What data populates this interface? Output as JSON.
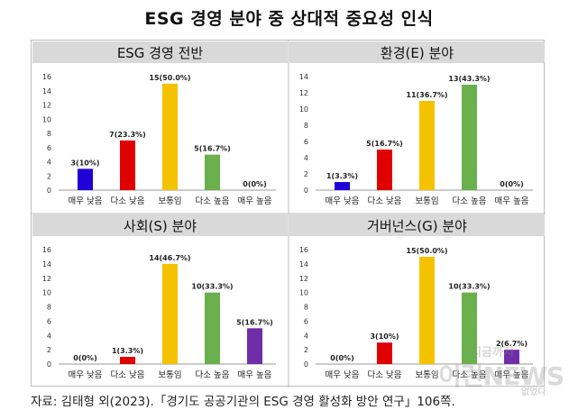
{
  "title": "ESG 경영 분야 중 상대적 중요성 인식",
  "source": "자료: 김태형 외(2023).「경기도 공공기관의 ESG 경영 활성화 방안 연구」106쪽.",
  "watermark": {
    "line1": "지금까지",
    "line2": "이런NEWS",
    "line3": "없었다"
  },
  "colors": [
    "#1f00d6",
    "#e00000",
    "#f5c200",
    "#6ab04c",
    "#6f2da8"
  ],
  "chart_data": [
    {
      "type": "bar",
      "title": "ESG 경영 전반",
      "categories": [
        "매우 낮음",
        "다소 낮음",
        "보통임",
        "다소 높음",
        "매우 높음"
      ],
      "values": [
        3,
        7,
        15,
        5,
        0
      ],
      "labels": [
        "3(10%)",
        "7(23.3%)",
        "15(50.0%)",
        "5(16.7%)",
        "0(0%)"
      ],
      "ylim": [
        0,
        16
      ],
      "yticks": [
        0,
        2,
        4,
        6,
        8,
        10,
        12,
        14,
        16
      ]
    },
    {
      "type": "bar",
      "title": "환경(E) 분야",
      "categories": [
        "매우 낮음",
        "다소 낮음",
        "보통임",
        "다소 높음",
        "매우 높음"
      ],
      "values": [
        1,
        5,
        11,
        13,
        0
      ],
      "labels": [
        "1(3.3%)",
        "5(16.7%)",
        "11(36.7%)",
        "13(43.3%)",
        "0(0%)"
      ],
      "ylim": [
        0,
        14
      ],
      "yticks": [
        0,
        2,
        4,
        6,
        8,
        10,
        12,
        14
      ]
    },
    {
      "type": "bar",
      "title": "사회(S) 분야",
      "categories": [
        "매우 낮음",
        "다소 낮음",
        "보통임",
        "다소 높음",
        "매우 높음"
      ],
      "values": [
        0,
        1,
        14,
        10,
        5
      ],
      "labels": [
        "0(0%)",
        "1(3.3%)",
        "14(46.7%)",
        "10(33.3%)",
        "5(16.7%)"
      ],
      "ylim": [
        0,
        16
      ],
      "yticks": [
        0,
        2,
        4,
        6,
        8,
        10,
        12,
        14,
        16
      ]
    },
    {
      "type": "bar",
      "title": "거버넌스(G) 분야",
      "categories": [
        "매우 낮음",
        "다소 낮음",
        "보통임",
        "다소 높음",
        "매우 높음"
      ],
      "values": [
        0,
        3,
        15,
        10,
        2
      ],
      "labels": [
        "0(0%)",
        "3(10%)",
        "15(50.0%)",
        "10(33.3%)",
        "2(6.7%)"
      ],
      "ylim": [
        0,
        16
      ],
      "yticks": [
        0,
        2,
        4,
        6,
        8,
        10,
        12,
        14,
        16
      ]
    }
  ]
}
